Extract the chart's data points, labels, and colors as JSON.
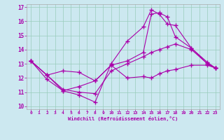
{
  "xlabel": "Windchill (Refroidissement éolien,°C)",
  "bg_color": "#cce8f0",
  "line_color": "#aa00aa",
  "grid_color": "#99ccbb",
  "xlim": [
    -0.5,
    23.5
  ],
  "ylim": [
    9.8,
    17.2
  ],
  "xticks": [
    0,
    1,
    2,
    3,
    4,
    5,
    6,
    7,
    8,
    9,
    10,
    11,
    12,
    13,
    14,
    15,
    16,
    17,
    18,
    19,
    20,
    21,
    22,
    23
  ],
  "yticks": [
    10,
    11,
    12,
    13,
    14,
    15,
    16,
    17
  ],
  "line1_x": [
    0,
    2,
    4,
    6,
    8,
    10,
    12,
    14,
    15,
    16,
    17,
    18,
    20,
    22,
    23
  ],
  "line1_y": [
    13.2,
    11.9,
    11.1,
    10.8,
    10.3,
    13.0,
    14.6,
    15.6,
    16.8,
    16.5,
    15.8,
    15.7,
    14.1,
    13.1,
    12.7
  ],
  "line2_x": [
    0,
    2,
    4,
    6,
    8,
    10,
    12,
    14,
    15,
    16,
    17,
    18,
    20,
    22,
    23
  ],
  "line2_y": [
    13.2,
    12.2,
    12.5,
    12.4,
    11.8,
    12.9,
    13.2,
    13.8,
    16.5,
    16.6,
    16.3,
    14.9,
    14.1,
    13.0,
    12.7
  ],
  "line3_x": [
    0,
    2,
    4,
    6,
    8,
    10,
    12,
    14,
    15,
    16,
    17,
    18,
    20,
    22,
    23
  ],
  "line3_y": [
    13.2,
    12.2,
    11.1,
    11.4,
    11.8,
    12.9,
    12.0,
    12.1,
    12.0,
    12.3,
    12.5,
    12.6,
    12.9,
    12.9,
    12.7
  ],
  "line4_x": [
    0,
    2,
    4,
    6,
    8,
    10,
    12,
    14,
    15,
    16,
    17,
    18,
    20,
    22,
    23
  ],
  "line4_y": [
    13.2,
    12.2,
    11.2,
    11.0,
    10.9,
    12.5,
    13.0,
    13.5,
    13.8,
    14.0,
    14.2,
    14.4,
    14.0,
    13.0,
    12.7
  ]
}
